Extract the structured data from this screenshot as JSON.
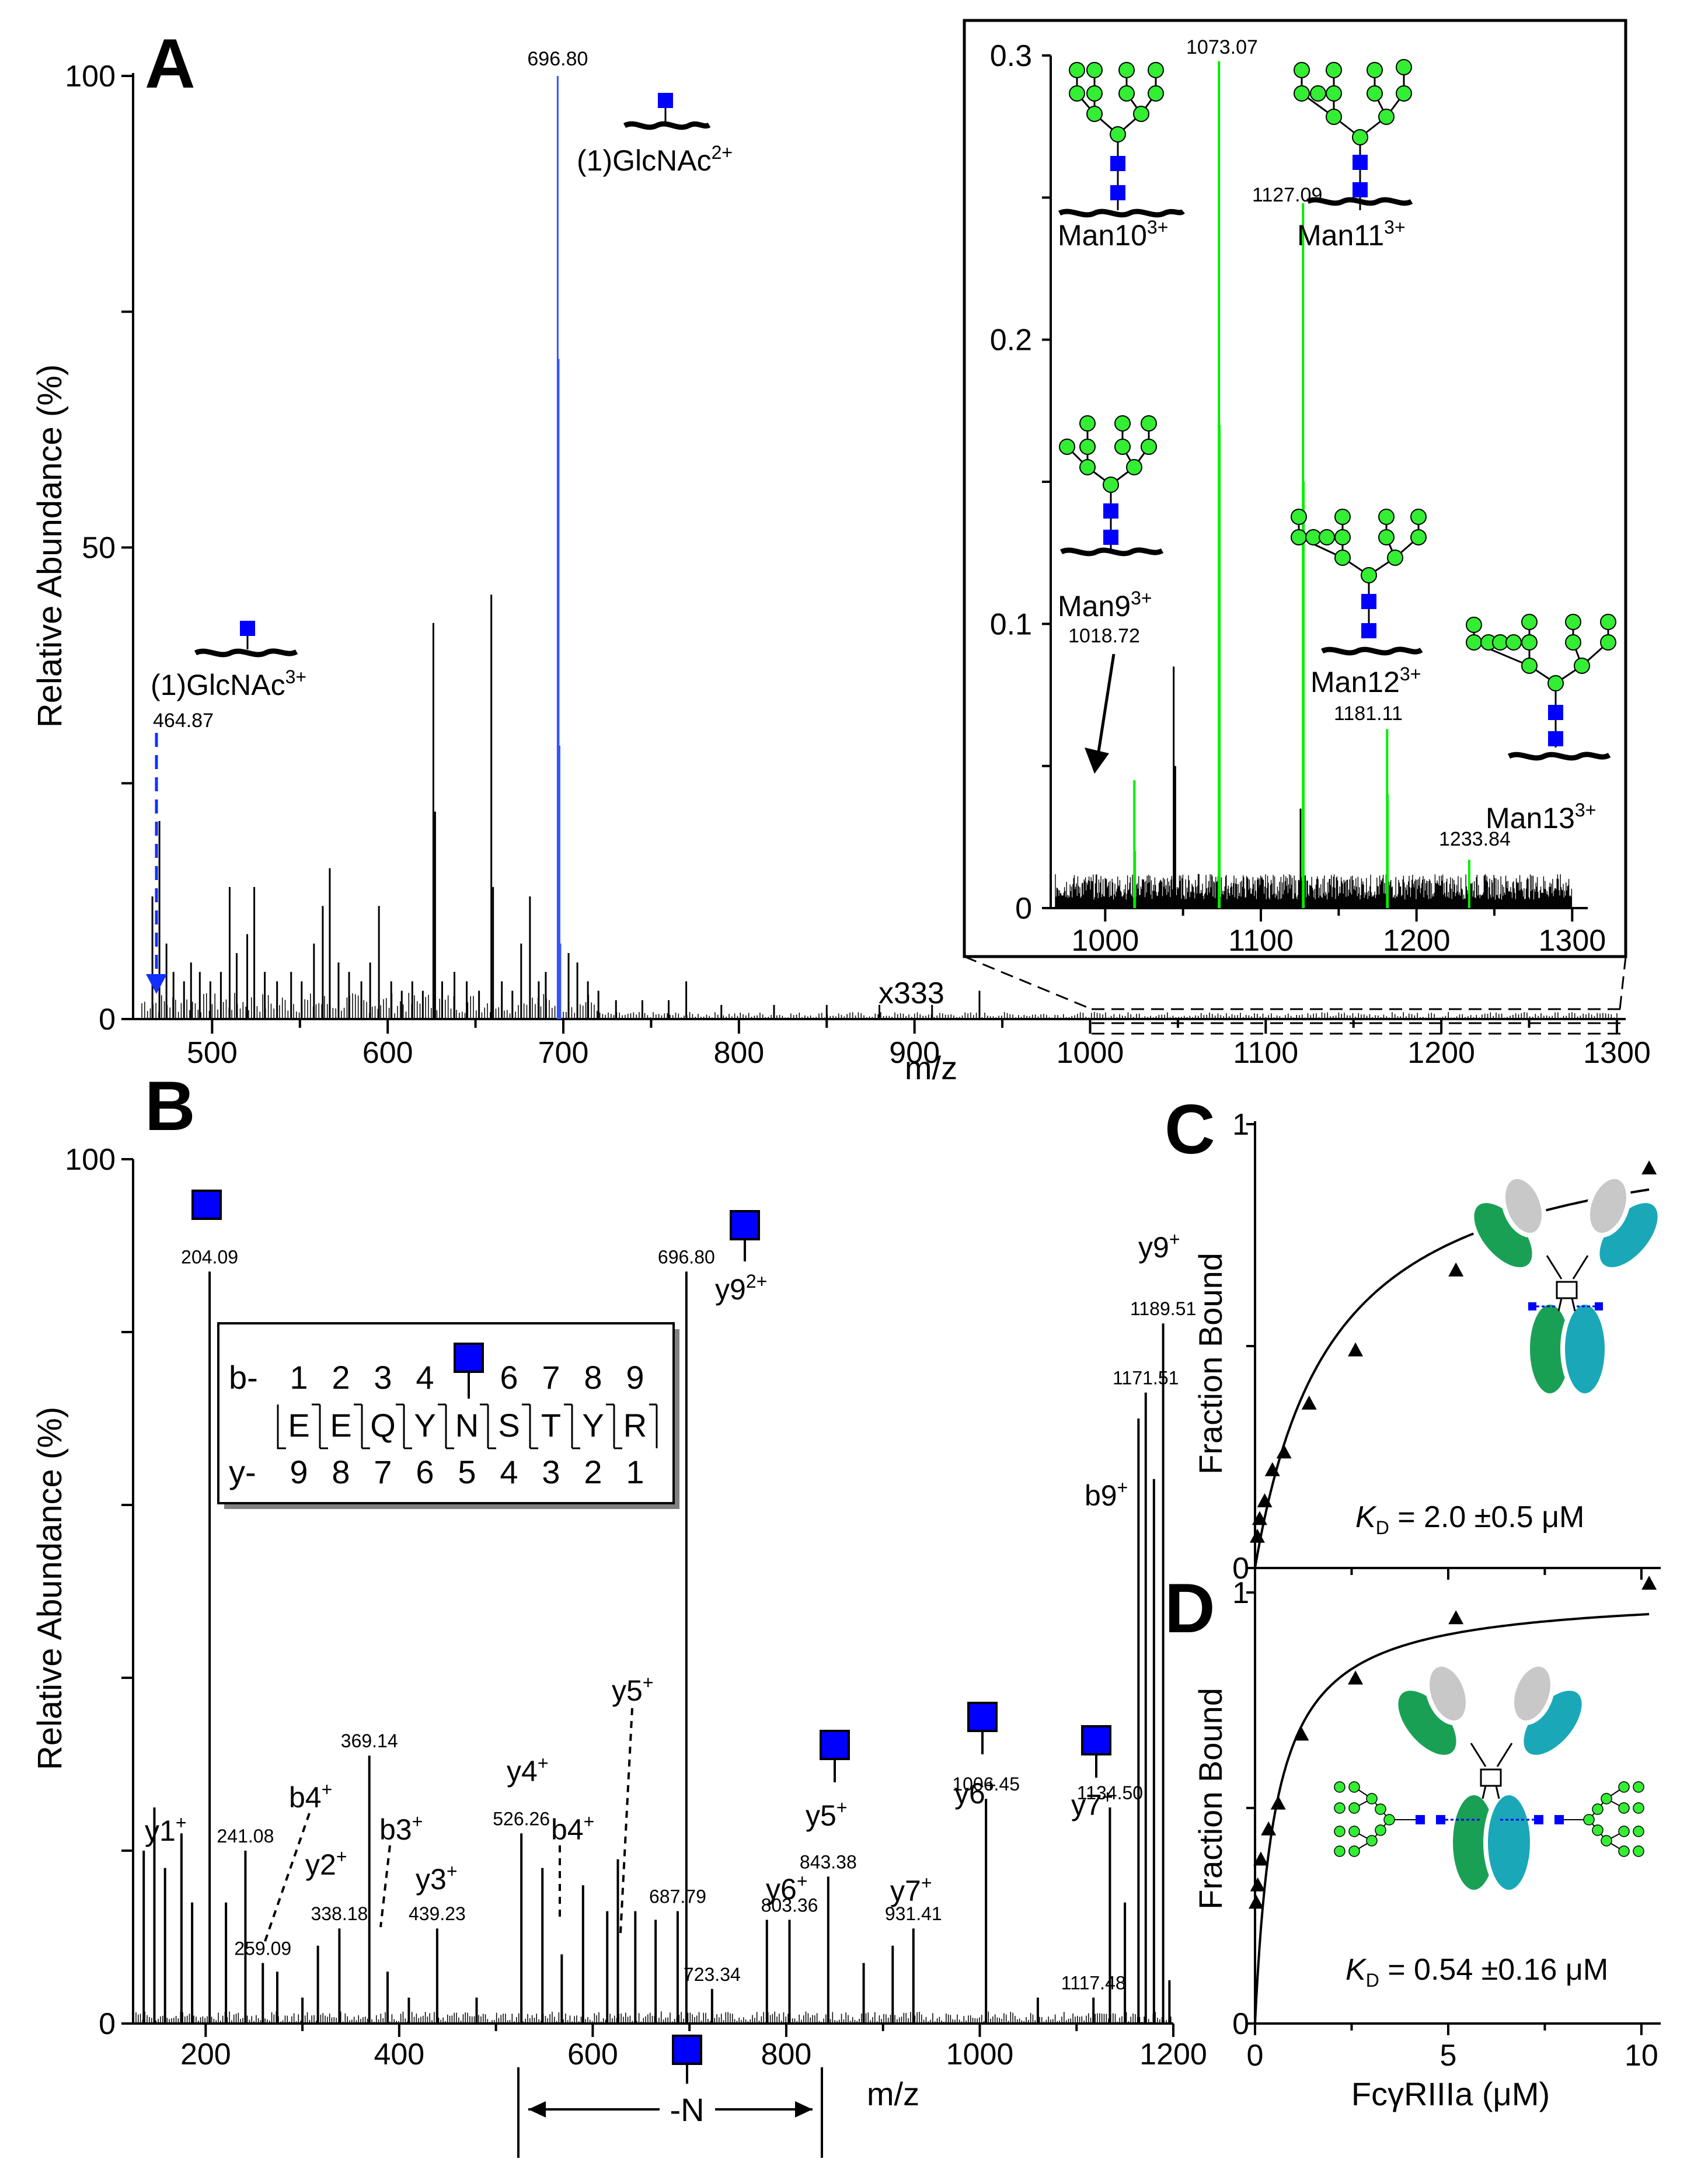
{
  "panels": {
    "A": "A",
    "B": "B",
    "C": "C",
    "D": "D"
  },
  "colors": {
    "glcnac": "#0000ff",
    "mannose": "#33ee33",
    "green_peak": "#00ee00",
    "blue_peak": "#3355ff",
    "black": "#000000",
    "fab_gray": "#c8c8c8",
    "fc_green": "#1aa055",
    "fc_teal": "#1aa8b8"
  },
  "icons": [
    "glcnac-square-icon",
    "mannose-circle-icon",
    "peptide-wave-icon",
    "antibody-icon",
    "arrow-icon"
  ],
  "chart_data": [
    {
      "id": "A-main",
      "type": "bar",
      "title": "",
      "xlabel": "m/z",
      "ylabel": "Relative Abundance (%)",
      "xlim": [
        455,
        1305
      ],
      "ylim": [
        0,
        100
      ],
      "xticks": [
        "500",
        "600",
        "700",
        "800",
        "900",
        "1000",
        "1100",
        "1200",
        "1300"
      ],
      "yticks": [
        "0",
        "50",
        "100"
      ],
      "scale_marker": "x333",
      "peaks_black": [
        {
          "x": 466,
          "y": 13
        },
        {
          "x": 470,
          "y": 21
        },
        {
          "x": 474,
          "y": 8
        },
        {
          "x": 478,
          "y": 5
        },
        {
          "x": 484,
          "y": 4
        },
        {
          "x": 488,
          "y": 6
        },
        {
          "x": 493,
          "y": 5
        },
        {
          "x": 499,
          "y": 4
        },
        {
          "x": 505,
          "y": 5
        },
        {
          "x": 510,
          "y": 14
        },
        {
          "x": 514,
          "y": 7
        },
        {
          "x": 520,
          "y": 9
        },
        {
          "x": 524,
          "y": 14
        },
        {
          "x": 530,
          "y": 5
        },
        {
          "x": 537,
          "y": 4
        },
        {
          "x": 545,
          "y": 5
        },
        {
          "x": 551,
          "y": 4
        },
        {
          "x": 558,
          "y": 8
        },
        {
          "x": 563,
          "y": 12
        },
        {
          "x": 567,
          "y": 16
        },
        {
          "x": 572,
          "y": 6
        },
        {
          "x": 578,
          "y": 5
        },
        {
          "x": 585,
          "y": 4
        },
        {
          "x": 590,
          "y": 6
        },
        {
          "x": 595,
          "y": 12
        },
        {
          "x": 602,
          "y": 4
        },
        {
          "x": 608,
          "y": 3
        },
        {
          "x": 614,
          "y": 4
        },
        {
          "x": 620,
          "y": 3
        },
        {
          "x": 626,
          "y": 42
        },
        {
          "x": 627,
          "y": 22
        },
        {
          "x": 631,
          "y": 4
        },
        {
          "x": 638,
          "y": 5
        },
        {
          "x": 645,
          "y": 4
        },
        {
          "x": 652,
          "y": 3
        },
        {
          "x": 659,
          "y": 45
        },
        {
          "x": 660,
          "y": 14
        },
        {
          "x": 665,
          "y": 4
        },
        {
          "x": 671,
          "y": 3
        },
        {
          "x": 676,
          "y": 8
        },
        {
          "x": 681,
          "y": 13
        },
        {
          "x": 686,
          "y": 4
        },
        {
          "x": 690,
          "y": 5
        },
        {
          "x": 703,
          "y": 7
        },
        {
          "x": 708,
          "y": 6
        },
        {
          "x": 714,
          "y": 4
        },
        {
          "x": 720,
          "y": 3
        },
        {
          "x": 730,
          "y": 2
        },
        {
          "x": 745,
          "y": 2
        },
        {
          "x": 760,
          "y": 2
        },
        {
          "x": 770,
          "y": 4
        },
        {
          "x": 790,
          "y": 1.5
        },
        {
          "x": 820,
          "y": 1.5
        },
        {
          "x": 850,
          "y": 1.5
        },
        {
          "x": 880,
          "y": 1.5
        },
        {
          "x": 910,
          "y": 1.5
        },
        {
          "x": 937,
          "y": 3
        }
      ],
      "peaks_blue": [
        {
          "x": 696.8,
          "y": 100,
          "label": "696.80"
        },
        {
          "x": 697.3,
          "y": 70
        },
        {
          "x": 697.8,
          "y": 29
        },
        {
          "x": 698.3,
          "y": 8
        }
      ],
      "annotations": [
        {
          "text": "(1)GlcNAc",
          "sup": "2+",
          "x": 696.8
        },
        {
          "text": "(1)GlcNAc",
          "sup": "3+",
          "mz": "464.87",
          "x": 464.87
        }
      ]
    },
    {
      "id": "A-inset",
      "type": "bar",
      "xlabel": "",
      "ylabel": "",
      "xlim": [
        965,
        1310
      ],
      "ylim": [
        0,
        0.3
      ],
      "xticks": [
        "1000",
        "1100",
        "1200",
        "1300"
      ],
      "yticks": [
        "0",
        "0.1",
        "0.2",
        "0.3"
      ],
      "peaks_green": [
        {
          "x": 1018.72,
          "y": 0.045,
          "label": "1018.72",
          "glycan": "Man9",
          "charge": "3+"
        },
        {
          "x": 1073.07,
          "y": 0.298,
          "label": "1073.07",
          "glycan": "Man10",
          "charge": "3+"
        },
        {
          "x": 1127.09,
          "y": 0.248,
          "label": "1127.09",
          "glycan": "Man11",
          "charge": "3+"
        },
        {
          "x": 1181.11,
          "y": 0.063,
          "label": "1181.11",
          "glycan": "Man12",
          "charge": "3+"
        },
        {
          "x": 1233.84,
          "y": 0.017,
          "label": "1233.84",
          "glycan": "Man13",
          "charge": "3+"
        }
      ],
      "peaks_green_isotopes": [
        {
          "x": 1073.4,
          "y": 0.17
        },
        {
          "x": 1127.4,
          "y": 0.15
        },
        {
          "x": 1181.4,
          "y": 0.04
        },
        {
          "x": 1019.05,
          "y": 0.02
        }
      ],
      "peaks_black": [
        {
          "x": 1044,
          "y": 0.085
        },
        {
          "x": 1045,
          "y": 0.05
        },
        {
          "x": 1125.5,
          "y": 0.035
        },
        {
          "x": 1060,
          "y": 0.012
        },
        {
          "x": 1098,
          "y": 0.01
        },
        {
          "x": 1152,
          "y": 0.008
        }
      ]
    },
    {
      "id": "B",
      "type": "bar",
      "xlabel": "m/z",
      "ylabel": "Relative Abundance (%)",
      "xlim": [
        125,
        1200
      ],
      "ylim": [
        0,
        100
      ],
      "xticks": [
        "200",
        "400",
        "600",
        "800",
        "1000",
        "1200"
      ],
      "yticks": [
        "0",
        "100"
      ],
      "peaks": [
        {
          "x": 136,
          "y": 20
        },
        {
          "x": 147,
          "y": 25
        },
        {
          "x": 158,
          "y": 18
        },
        {
          "x": 175,
          "y": 22
        },
        {
          "x": 186,
          "y": 14
        },
        {
          "x": 204.09,
          "y": 87,
          "label": "204.09"
        },
        {
          "x": 221,
          "y": 14
        },
        {
          "x": 241.08,
          "y": 20,
          "label": "241.08"
        },
        {
          "x": 259.09,
          "y": 7,
          "label": "259.09"
        },
        {
          "x": 274,
          "y": 6
        },
        {
          "x": 300,
          "y": 3
        },
        {
          "x": 316,
          "y": 9
        },
        {
          "x": 338.18,
          "y": 11,
          "label": "338.18"
        },
        {
          "x": 369.14,
          "y": 31,
          "label": "369.14"
        },
        {
          "x": 388,
          "y": 6
        },
        {
          "x": 410,
          "y": 3
        },
        {
          "x": 439.23,
          "y": 11,
          "label": "439.23"
        },
        {
          "x": 480,
          "y": 3
        },
        {
          "x": 526.26,
          "y": 22,
          "label": "526.26"
        },
        {
          "x": 548,
          "y": 18
        },
        {
          "x": 568,
          "y": 8
        },
        {
          "x": 590,
          "y": 16
        },
        {
          "x": 615,
          "y": 13
        },
        {
          "x": 626,
          "y": 19
        },
        {
          "x": 644,
          "y": 13
        },
        {
          "x": 665,
          "y": 12
        },
        {
          "x": 687.79,
          "y": 13,
          "label": "687.79"
        },
        {
          "x": 696.8,
          "y": 87,
          "label": "696.80"
        },
        {
          "x": 723.34,
          "y": 4,
          "label": "723.34"
        },
        {
          "x": 780,
          "y": 12
        },
        {
          "x": 803.36,
          "y": 12,
          "label": "803.36"
        },
        {
          "x": 843.38,
          "y": 17,
          "label": "843.38"
        },
        {
          "x": 880,
          "y": 7
        },
        {
          "x": 910,
          "y": 9
        },
        {
          "x": 931.41,
          "y": 11,
          "label": "931.41"
        },
        {
          "x": 1006.45,
          "y": 26,
          "label": "1006.45"
        },
        {
          "x": 1060,
          "y": 3
        },
        {
          "x": 1117.48,
          "y": 3,
          "label": "1117.48"
        },
        {
          "x": 1134.5,
          "y": 25,
          "label": "1134.50"
        },
        {
          "x": 1150,
          "y": 14
        },
        {
          "x": 1164,
          "y": 70
        },
        {
          "x": 1171.51,
          "y": 73,
          "label": "1171.51"
        },
        {
          "x": 1180,
          "y": 63
        },
        {
          "x": 1189.51,
          "y": 81,
          "label": "1189.51"
        },
        {
          "x": 1196,
          "y": 5
        }
      ],
      "ion_labels": [
        {
          "text": "y1",
          "sup": "+"
        },
        {
          "text": "b4",
          "sup": "+"
        },
        {
          "text": "y2",
          "sup": "+"
        },
        {
          "text": "b3",
          "sup": "+"
        },
        {
          "text": "y3",
          "sup": "+"
        },
        {
          "text": "y4",
          "sup": "+"
        },
        {
          "text": "b4",
          "sup": "+"
        },
        {
          "text": "y5",
          "sup": "+"
        },
        {
          "text": "y9",
          "sup": "2+"
        },
        {
          "text": "y5",
          "sup": "+"
        },
        {
          "text": "y6",
          "sup": "+"
        },
        {
          "text": "y6",
          "sup": "+"
        },
        {
          "text": "y7",
          "sup": "+"
        },
        {
          "text": "y7",
          "sup": "+"
        },
        {
          "text": "b9",
          "sup": "+"
        },
        {
          "text": "y9",
          "sup": "+"
        }
      ],
      "neutral_loss": "-N",
      "sequence": {
        "b_prefix": "b-",
        "y_prefix": "y-",
        "residues": [
          "E",
          "E",
          "Q",
          "Y",
          "N",
          "S",
          "T",
          "Y",
          "R"
        ],
        "b_numbers": [
          "1",
          "2",
          "3",
          "4",
          "",
          "6",
          "7",
          "8",
          "9"
        ],
        "y_numbers": [
          "9",
          "8",
          "7",
          "6",
          "5",
          "4",
          "3",
          "2",
          "1"
        ]
      }
    },
    {
      "id": "C",
      "type": "scatter",
      "xlabel": "",
      "ylabel": "Fraction Bound",
      "xlim": [
        0,
        10.5
      ],
      "ylim": [
        0,
        1
      ],
      "yticks": [
        "0",
        "1"
      ],
      "points": [
        [
          0.06,
          0.07
        ],
        [
          0.12,
          0.11
        ],
        [
          0.25,
          0.15
        ],
        [
          0.45,
          0.22
        ],
        [
          0.75,
          0.26
        ],
        [
          1.4,
          0.37
        ],
        [
          2.6,
          0.49
        ],
        [
          5.2,
          0.67
        ],
        [
          10.2,
          0.9
        ]
      ],
      "fit": {
        "model": "hyperbolic",
        "Bmax": 1.02,
        "KD": 2.0
      },
      "kd_symbol": "K",
      "kd_sub": "D",
      "kd_text": " = 2.0 ±0.5 μM"
    },
    {
      "id": "D",
      "type": "scatter",
      "xlabel": "FcγRIIIa (μM)",
      "ylabel": "Fraction Bound",
      "xlim": [
        0,
        10.5
      ],
      "ylim": [
        0,
        1.05
      ],
      "xticks": [
        "0",
        "5",
        "10"
      ],
      "yticks": [
        "0",
        "1"
      ],
      "points": [
        [
          0.03,
          0.28
        ],
        [
          0.07,
          0.32
        ],
        [
          0.15,
          0.38
        ],
        [
          0.35,
          0.45
        ],
        [
          0.6,
          0.51
        ],
        [
          1.2,
          0.67
        ],
        [
          2.6,
          0.8
        ],
        [
          5.2,
          0.94
        ],
        [
          10.2,
          1.02
        ]
      ],
      "fit": {
        "model": "hyperbolic",
        "Bmax": 1.0,
        "KD": 0.54
      },
      "kd_symbol": "K",
      "kd_sub": "D",
      "kd_text": " = 0.54 ±0.16 μM"
    }
  ]
}
